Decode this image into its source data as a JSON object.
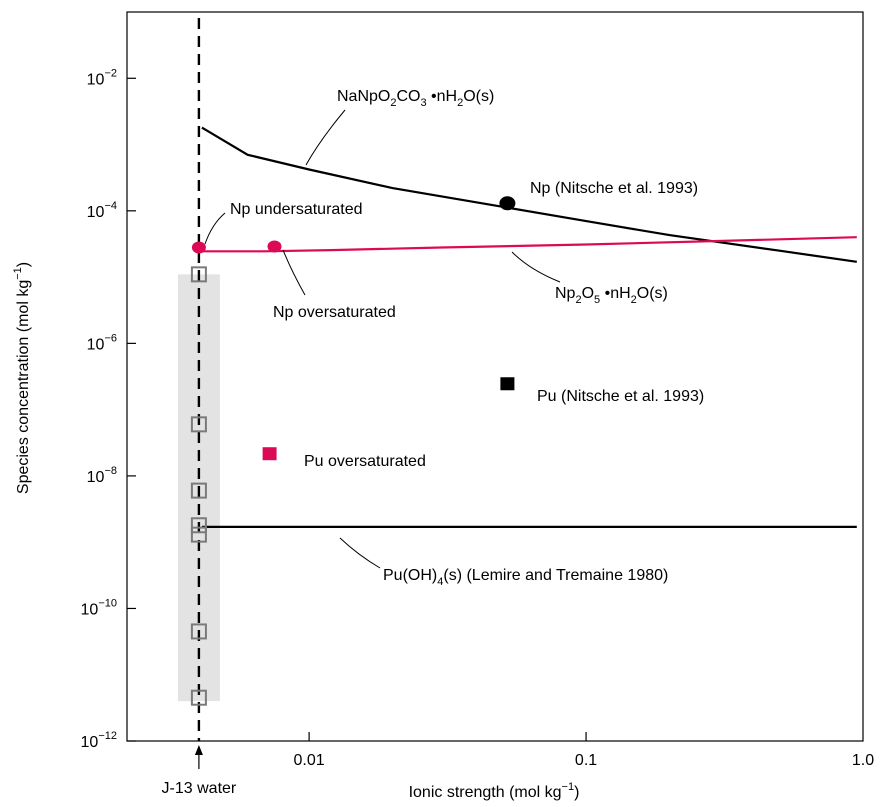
{
  "chart_data": {
    "type": "scatter",
    "x_axis": {
      "label_main": "Ionic strength (mol kg",
      "label_sup": "−1",
      "label_end": ")",
      "scale": "log",
      "range": [
        0.0022,
        1.0
      ],
      "ticks": [
        {
          "value": 0.01,
          "label": "0.01"
        },
        {
          "value": 0.1,
          "label": "0.1"
        },
        {
          "value": 1.0,
          "label": "1.0"
        }
      ]
    },
    "y_axis": {
      "label_main": "Species concentration (mol kg",
      "label_sup": "−1",
      "label_end": ")",
      "scale": "log",
      "range": [
        1e-12,
        0.1
      ],
      "ticks": [
        {
          "value": 0.01,
          "base": "10",
          "exp": "−2"
        },
        {
          "value": 0.0001,
          "base": "10",
          "exp": "−4"
        },
        {
          "value": 1e-06,
          "base": "10",
          "exp": "−6"
        },
        {
          "value": 1e-08,
          "base": "10",
          "exp": "−8"
        },
        {
          "value": 1e-10,
          "base": "10",
          "exp": "−10"
        },
        {
          "value": 1e-12,
          "base": "10",
          "exp": "−12"
        }
      ]
    },
    "reference_line": {
      "x": 0.004,
      "label": "J-13 water"
    },
    "shaded_range": {
      "x": 0.004,
      "y_low": 4e-12,
      "y_high": 1.1e-05,
      "color": "#e3e3e3"
    },
    "series": [
      {
        "kind": "line",
        "color": "#000000",
        "points": [
          [
            0.0041,
            0.0018
          ],
          [
            0.006,
            0.0007
          ],
          [
            0.01,
            0.00042
          ],
          [
            0.02,
            0.00022
          ],
          [
            0.05,
            0.000115
          ],
          [
            0.1,
            7e-05
          ],
          [
            0.2,
            4.3e-05
          ],
          [
            0.5,
            2.5e-05
          ],
          [
            0.95,
            1.7e-05
          ]
        ],
        "label_parts": [
          [
            "NaNpO",
            ""
          ],
          [
            "2",
            "sub"
          ],
          [
            "CO",
            ""
          ],
          [
            "3",
            "sub"
          ],
          [
            " •nH",
            ""
          ],
          [
            "2",
            "sub"
          ],
          [
            "O(s)",
            ""
          ]
        ]
      },
      {
        "kind": "line",
        "color": "#dc0a55",
        "points": [
          [
            0.0041,
            2.45e-05
          ],
          [
            0.0069,
            2.45e-05
          ],
          [
            0.012,
            2.55e-05
          ],
          [
            0.03,
            2.8e-05
          ],
          [
            0.1,
            3.1e-05
          ],
          [
            0.3,
            3.5e-05
          ],
          [
            0.95,
            4e-05
          ]
        ],
        "label_parts": [
          [
            "Np",
            ""
          ],
          [
            "2",
            "sub"
          ],
          [
            "O",
            ""
          ],
          [
            "5",
            "sub"
          ],
          [
            " •nH",
            ""
          ],
          [
            "2",
            "sub"
          ],
          [
            "O(s)",
            ""
          ]
        ]
      },
      {
        "kind": "line",
        "color": "#000000",
        "points": [
          [
            0.0041,
            1.7e-09
          ],
          [
            0.95,
            1.7e-09
          ]
        ],
        "label_parts": [
          [
            "Pu(OH)",
            ""
          ],
          [
            "4",
            "sub"
          ],
          [
            "(s)   (Lemire and Tremaine 1980)",
            ""
          ]
        ]
      }
    ],
    "points": [
      {
        "marker": "circle",
        "color": "#dc0a55",
        "x": 0.004,
        "y": 2.8e-05,
        "label": "Np undersaturated"
      },
      {
        "marker": "circle",
        "color": "#dc0a55",
        "x": 0.0075,
        "y": 2.9e-05,
        "label": "Np oversaturated"
      },
      {
        "marker": "ellipse",
        "color": "#000000",
        "x": 0.052,
        "y": 0.00013,
        "label": "Np   (Nitsche et al. 1993)"
      },
      {
        "marker": "square",
        "color": "#000000",
        "x": 0.052,
        "y": 2.5e-07,
        "label": "Pu   (Nitsche et al. 1993)"
      },
      {
        "marker": "square",
        "color": "#dc0a55",
        "x": 0.0072,
        "y": 2.2e-08,
        "label": "Pu oversaturated"
      }
    ],
    "open_squares": {
      "color": "#7a7a7a",
      "x": 0.004,
      "y_values": [
        1.1e-05,
        6e-08,
        6e-09,
        1.8e-09,
        1.3e-09,
        4.5e-11,
        4.5e-12
      ]
    }
  }
}
